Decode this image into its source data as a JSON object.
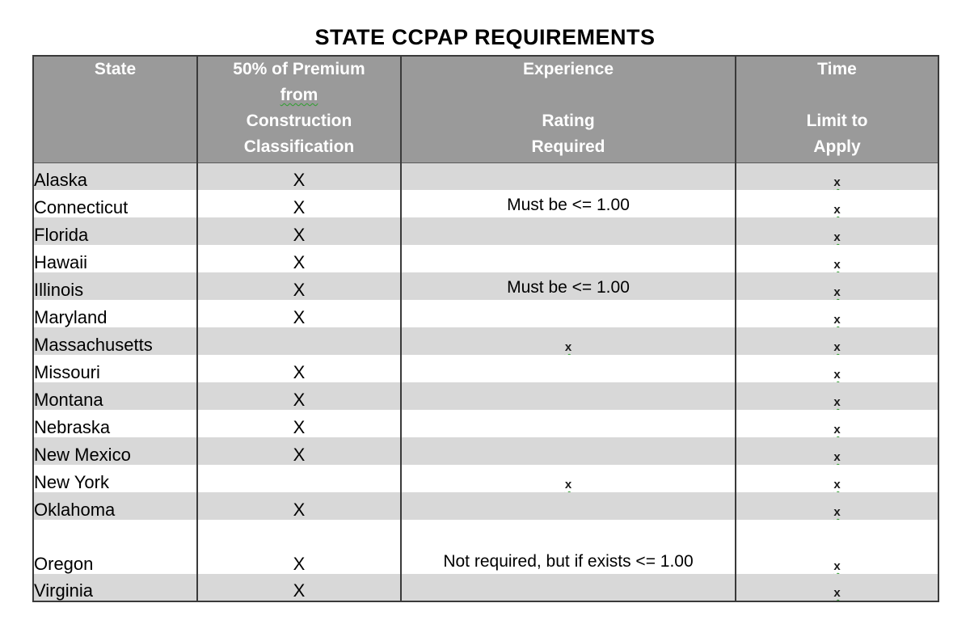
{
  "title": "STATE CCPAP REQUIREMENTS",
  "colors": {
    "header_bg": "#9a9a9a",
    "row_alt_bg": "#d8d8d8",
    "row_bg": "#ffffff",
    "border": "#3a3a3a",
    "header_text": "#ffffff",
    "text": "#000000",
    "squiggle": "#2f9e2f"
  },
  "table": {
    "columns": [
      {
        "key": "state",
        "label": "State",
        "lines": [
          "State"
        ]
      },
      {
        "key": "premium",
        "label": "50% of Premium from Construction Classification",
        "lines": [
          "50% of Premium",
          "from",
          "Construction",
          "Classification"
        ],
        "wavy_line": "from"
      },
      {
        "key": "experience",
        "label": "Experience Rating Required",
        "lines": [
          "Experience",
          "",
          "Rating",
          "Required"
        ]
      },
      {
        "key": "time",
        "label": "Time Limit to Apply",
        "lines": [
          "Time",
          "",
          "Limit to",
          "Apply"
        ]
      }
    ],
    "rows": [
      {
        "state": "Alaska",
        "premium": "X",
        "experience": "",
        "time": "x"
      },
      {
        "state": "Connecticut",
        "premium": "X",
        "experience": "Must be <= 1.00",
        "time": "x"
      },
      {
        "state": "Florida",
        "premium": "X",
        "experience": "",
        "time": "x"
      },
      {
        "state": "Hawaii",
        "premium": "X",
        "experience": "",
        "time": "x"
      },
      {
        "state": "Illinois",
        "premium": "X",
        "experience": "Must be <= 1.00",
        "time": "x"
      },
      {
        "state": "Maryland",
        "premium": "X",
        "experience": "",
        "time": "x"
      },
      {
        "state": "Massachusetts",
        "premium": "",
        "experience": "x",
        "time": "x"
      },
      {
        "state": "Missouri",
        "premium": "X",
        "experience": "",
        "time": "x"
      },
      {
        "state": "Montana",
        "premium": "X",
        "experience": "",
        "time": "x"
      },
      {
        "state": "Nebraska",
        "premium": "X",
        "experience": "",
        "time": "x"
      },
      {
        "state": "New Mexico",
        "premium": "X",
        "experience": "",
        "time": "x"
      },
      {
        "state": "New York",
        "premium": "",
        "experience": "x",
        "time": "x"
      },
      {
        "state": "Oklahoma",
        "premium": "X",
        "experience": "",
        "time": "x"
      },
      {
        "state": "Oregon",
        "premium": "X",
        "experience": "Not required, but if exists <= 1.00",
        "time": "x",
        "tall": true
      },
      {
        "state": "Virginia",
        "premium": "X",
        "experience": "",
        "time": "x"
      }
    ]
  }
}
